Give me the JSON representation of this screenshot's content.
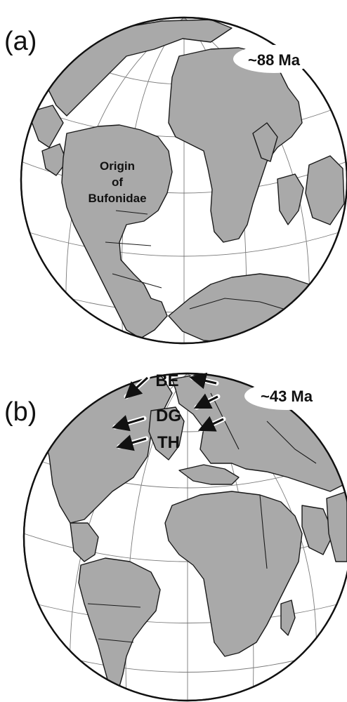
{
  "panels": [
    {
      "letter": "(a)",
      "age": "~88 Ma",
      "region_label": [
        "Origin",
        "of",
        "Bufonidae"
      ]
    },
    {
      "letter": "(b)",
      "age": "~43 Ma",
      "corridor_labels": [
        "BE",
        "DG",
        "TH"
      ]
    }
  ],
  "colors": {
    "land": "#a9a9a9",
    "ocean": "#ffffff",
    "outline": "#1a1a1a",
    "graticule": "#7a7a7a"
  },
  "icons": [
    "dispersal-arrow-icon"
  ]
}
